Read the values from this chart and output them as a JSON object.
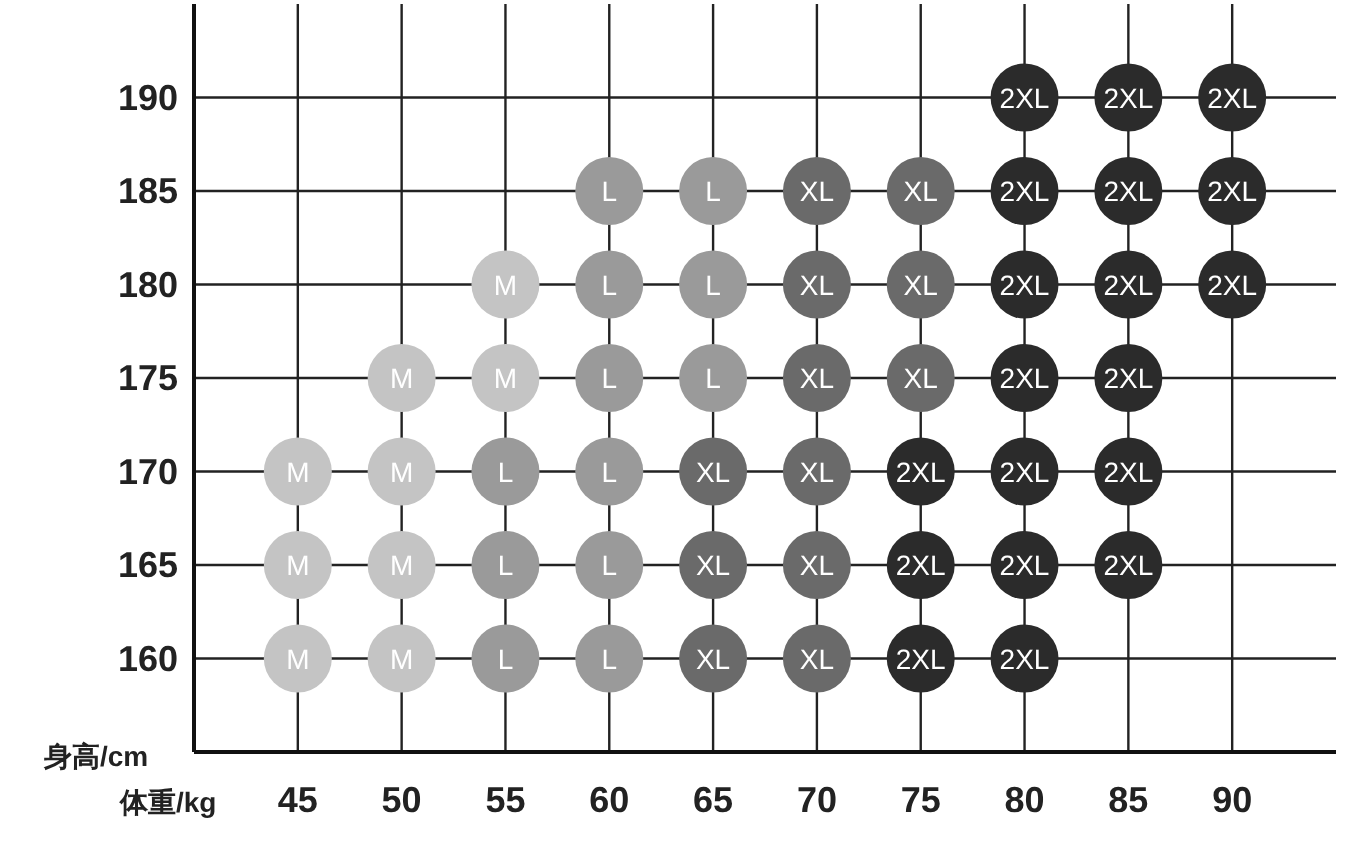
{
  "chart_data": {
    "type": "scatter",
    "xlabel": "体重/kg",
    "ylabel": "身高/cm",
    "xlim": [
      40,
      95
    ],
    "ylim": [
      155,
      195
    ],
    "xticks": [
      45,
      50,
      55,
      60,
      65,
      70,
      75,
      80,
      85,
      90
    ],
    "yticks": [
      160,
      165,
      170,
      175,
      180,
      185,
      190
    ],
    "grid": true,
    "marker": "circle",
    "series": [
      {
        "name": "M",
        "color": "#c4c4c4",
        "x": [
          55,
          50,
          55,
          45,
          50,
          45,
          50,
          45,
          50
        ],
        "values": [
          180,
          175,
          175,
          170,
          170,
          165,
          165,
          160,
          160
        ]
      },
      {
        "name": "L",
        "color": "#9a9a9a",
        "x": [
          60,
          65,
          60,
          65,
          60,
          65,
          55,
          60,
          55,
          60,
          55,
          60
        ],
        "values": [
          185,
          185,
          180,
          180,
          175,
          175,
          170,
          170,
          165,
          165,
          160,
          160
        ]
      },
      {
        "name": "XL",
        "color": "#6a6a6a",
        "x": [
          70,
          75,
          70,
          75,
          70,
          75,
          65,
          70,
          65,
          70,
          65,
          70
        ],
        "values": [
          185,
          185,
          180,
          180,
          175,
          175,
          170,
          170,
          165,
          165,
          160,
          160
        ]
      },
      {
        "name": "2XL",
        "color": "#2b2b2b",
        "x": [
          80,
          85,
          90,
          80,
          85,
          90,
          80,
          85,
          90,
          80,
          85,
          75,
          80,
          85,
          75,
          80,
          85,
          75,
          80
        ],
        "values": [
          190,
          190,
          190,
          185,
          185,
          185,
          180,
          180,
          180,
          175,
          175,
          170,
          170,
          170,
          165,
          165,
          165,
          160,
          160
        ]
      }
    ]
  }
}
